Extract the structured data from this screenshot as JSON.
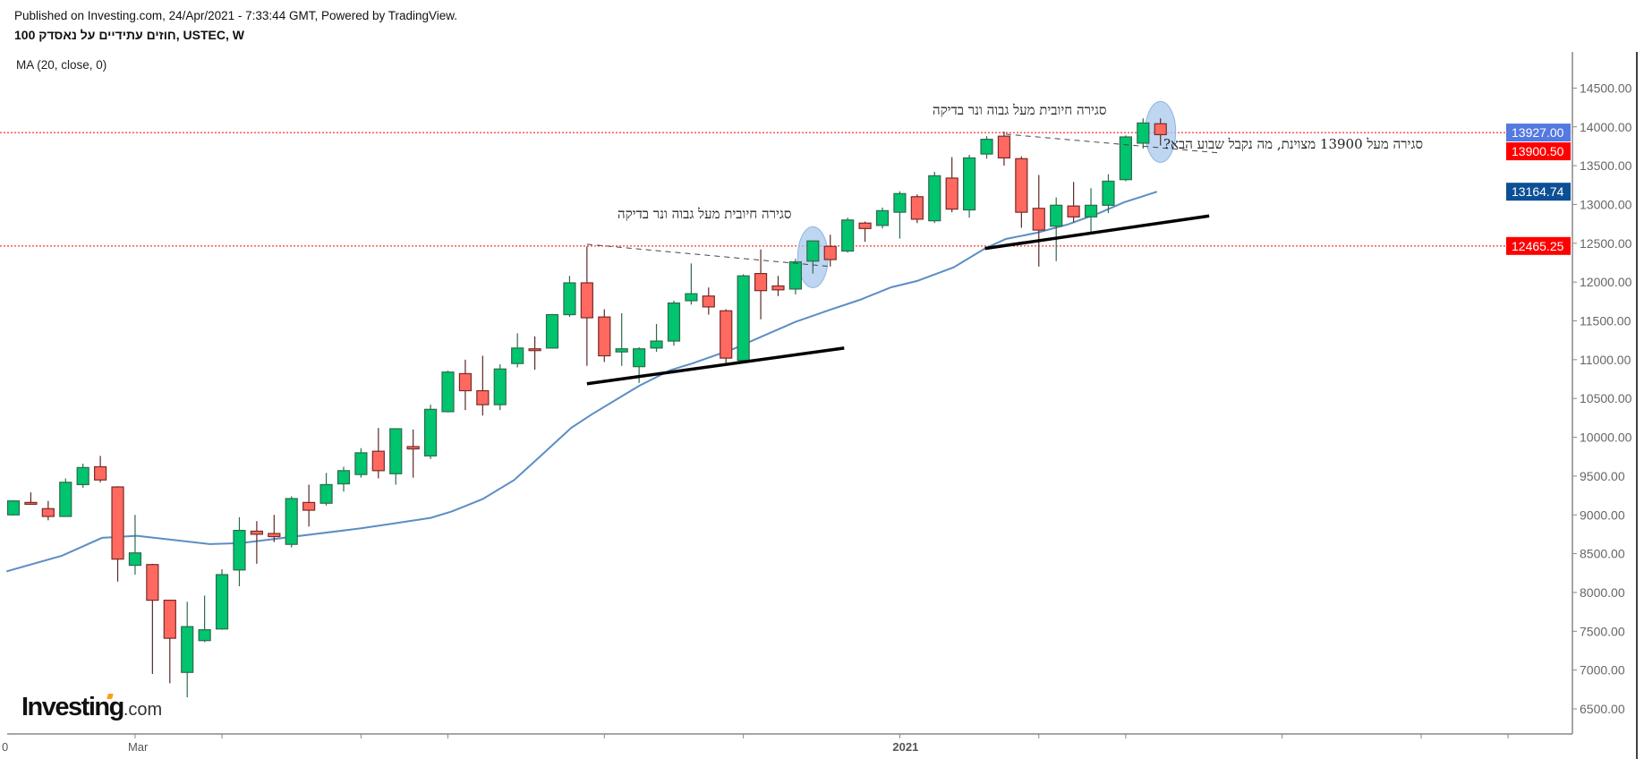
{
  "header": {
    "published": "Published on Investing.com, 24/Apr/2021 - 7:33:44 GMT, Powered by TradingView.",
    "title": "חוזים עתידיים על נאסדק 100, USTEC, W",
    "indicator_legend": "MA (20, close, 0)"
  },
  "logo": {
    "main": "Investing",
    "suffix": ".com"
  },
  "annotations": {
    "note1": "סגירה חיובית מעל גבוה ונר בדיקה",
    "note2": "סגירה חיובית מעל גבוה ונר בדיקה",
    "note3": "סגירה מעל 13900 מצוינת, מה נקבל שבוע הבא?"
  },
  "colors": {
    "up": "#00c46e",
    "down": "#ff6960",
    "ma": "#5b8ec4",
    "hline": "#ff0000",
    "badge_last_price": "#5479e0",
    "badge_red": "#ff0000",
    "badge_ma": "#0d4f95",
    "highlight": "#a8c8ec"
  },
  "chart_data": {
    "type": "candlestick",
    "symbol": "USTEC",
    "interval": "W",
    "ylim": [
      6300,
      14800
    ],
    "y_ticks": [
      "6500.00",
      "7000.00",
      "7500.00",
      "8000.00",
      "8500.00",
      "9000.00",
      "9500.00",
      "10000.00",
      "10500.00",
      "11000.00",
      "11500.00",
      "12000.00",
      "12500.00",
      "13000.00",
      "13500.00",
      "14000.00",
      "14500.00"
    ],
    "x_tick_candles": [
      7,
      12,
      20,
      25,
      34,
      42,
      51,
      59,
      64,
      73,
      81,
      86
    ],
    "x_labels": [
      {
        "text": "0",
        "candle": -0.6
      },
      {
        "text": "Mar",
        "candle": 7
      },
      {
        "text": "2021",
        "candle": 51
      }
    ],
    "candles": [
      [
        9000,
        9190,
        8990,
        9180
      ],
      [
        9160,
        9290,
        9130,
        9140
      ],
      [
        9080,
        9180,
        8930,
        8980
      ],
      [
        8980,
        9470,
        8980,
        9420
      ],
      [
        9390,
        9660,
        9350,
        9610
      ],
      [
        9620,
        9760,
        9420,
        9450
      ],
      [
        9360,
        9370,
        8140,
        8430
      ],
      [
        8350,
        9000,
        8230,
        8510
      ],
      [
        8360,
        8370,
        6950,
        7900
      ],
      [
        7900,
        7900,
        6830,
        7410
      ],
      [
        6970,
        7880,
        6650,
        7560
      ],
      [
        7380,
        7960,
        7360,
        7520
      ],
      [
        7530,
        8300,
        7520,
        8230
      ],
      [
        8290,
        8970,
        8080,
        8800
      ],
      [
        8790,
        8920,
        8370,
        8750
      ],
      [
        8760,
        9000,
        8650,
        8720
      ],
      [
        8620,
        9240,
        8580,
        9210
      ],
      [
        9160,
        9390,
        8850,
        9060
      ],
      [
        9150,
        9540,
        9120,
        9390
      ],
      [
        9400,
        9620,
        9300,
        9570
      ],
      [
        9520,
        9860,
        9480,
        9800
      ],
      [
        9820,
        10120,
        9470,
        9570
      ],
      [
        9530,
        10110,
        9390,
        10110
      ],
      [
        9880,
        10100,
        9480,
        9850
      ],
      [
        9760,
        10420,
        9720,
        10360
      ],
      [
        10330,
        10860,
        10320,
        10840
      ],
      [
        10820,
        11000,
        10350,
        10600
      ],
      [
        10600,
        11050,
        10280,
        10420
      ],
      [
        10420,
        10940,
        10350,
        10880
      ],
      [
        10950,
        11340,
        10900,
        11150
      ],
      [
        11140,
        11300,
        10870,
        11130
      ],
      [
        11150,
        11590,
        11150,
        11580
      ],
      [
        11580,
        12080,
        11550,
        11990
      ],
      [
        11990,
        12460,
        10920,
        11540
      ],
      [
        11550,
        11650,
        10970,
        11050
      ],
      [
        11100,
        11600,
        10920,
        11140
      ],
      [
        10910,
        11160,
        10700,
        11140
      ],
      [
        11150,
        11460,
        11100,
        11240
      ],
      [
        11240,
        11760,
        11180,
        11730
      ],
      [
        11760,
        12240,
        11710,
        11850
      ],
      [
        11820,
        11930,
        11580,
        11680
      ],
      [
        11630,
        11650,
        10960,
        11020
      ],
      [
        10990,
        12100,
        10970,
        12080
      ],
      [
        12110,
        12420,
        11520,
        11890
      ],
      [
        11950,
        12080,
        11820,
        11900
      ],
      [
        11910,
        12300,
        11840,
        12260
      ],
      [
        12270,
        12530,
        12110,
        12530
      ],
      [
        12460,
        12610,
        12200,
        12290
      ],
      [
        12400,
        12830,
        12380,
        12800
      ],
      [
        12760,
        12780,
        12520,
        12690
      ],
      [
        12730,
        12960,
        12690,
        12920
      ],
      [
        12900,
        13170,
        12560,
        13140
      ],
      [
        13100,
        13130,
        12760,
        12810
      ],
      [
        12790,
        13420,
        12760,
        13370
      ],
      [
        13340,
        13610,
        12900,
        12940
      ],
      [
        12930,
        13640,
        12830,
        13600
      ],
      [
        13650,
        13880,
        13590,
        13840
      ],
      [
        13880,
        13940,
        13500,
        13600
      ],
      [
        13590,
        13620,
        12700,
        12900
      ],
      [
        12950,
        13380,
        12200,
        12670
      ],
      [
        12720,
        13090,
        12270,
        12990
      ],
      [
        12980,
        13290,
        12770,
        12840
      ],
      [
        12840,
        13210,
        12620,
        12990
      ],
      [
        12990,
        13390,
        12890,
        13300
      ],
      [
        13320,
        13890,
        13300,
        13870
      ],
      [
        13790,
        14110,
        13720,
        14050
      ],
      [
        14040,
        14110,
        13760,
        13900
      ]
    ],
    "ma_series": {
      "name": "MA (20, close, 0)",
      "points": [
        [
          -0.4,
          8272
        ],
        [
          2.8,
          8475
        ],
        [
          5.1,
          8704
        ],
        [
          7.1,
          8731
        ],
        [
          11.3,
          8623
        ],
        [
          13.1,
          8636
        ],
        [
          20,
          8826
        ],
        [
          22,
          8893
        ],
        [
          24,
          8961
        ],
        [
          25.2,
          9042
        ],
        [
          27,
          9204
        ],
        [
          28.8,
          9447
        ],
        [
          30,
          9690
        ],
        [
          32.1,
          10123
        ],
        [
          33.3,
          10298
        ],
        [
          35.1,
          10541
        ],
        [
          36,
          10663
        ],
        [
          37.8,
          10866
        ],
        [
          39,
          10947
        ],
        [
          41.4,
          11136
        ],
        [
          43.2,
          11312
        ],
        [
          45,
          11487
        ],
        [
          46.9,
          11636
        ],
        [
          48.7,
          11771
        ],
        [
          50.5,
          11933
        ],
        [
          52,
          12014
        ],
        [
          54.1,
          12190
        ],
        [
          55.9,
          12433
        ],
        [
          57.1,
          12555
        ],
        [
          58.9,
          12636
        ],
        [
          60.7,
          12744
        ],
        [
          62.5,
          12892
        ],
        [
          63.9,
          13027
        ],
        [
          65.8,
          13164.74
        ]
      ]
    },
    "horizontal_lines": [
      13927.0,
      12465.25
    ],
    "trend_lines": [
      {
        "style": "solid",
        "from": [
          33,
          10690
        ],
        "to": [
          47.8,
          11150
        ]
      },
      {
        "style": "solid",
        "from": [
          55.9,
          12433
        ],
        "to": [
          68.8,
          12852
        ]
      },
      {
        "style": "dashed",
        "from": [
          33,
          12487
        ],
        "to": [
          46.9,
          12203
        ]
      },
      {
        "style": "dashed",
        "from": [
          57.1,
          13906
        ],
        "to": [
          69.5,
          13662
        ]
      }
    ],
    "highlighted_candles": [
      46,
      66
    ],
    "price_badges": [
      {
        "text": "13927.00",
        "value": 13927.0,
        "color_key": "badge_last_price"
      },
      {
        "text": "13900.50",
        "value": 13900.5,
        "color_key": "badge_red"
      },
      {
        "text": "13164.74",
        "value": 13164.74,
        "color_key": "badge_ma"
      },
      {
        "text": "12465.25",
        "value": 12465.25,
        "color_key": "badge_red"
      }
    ]
  }
}
